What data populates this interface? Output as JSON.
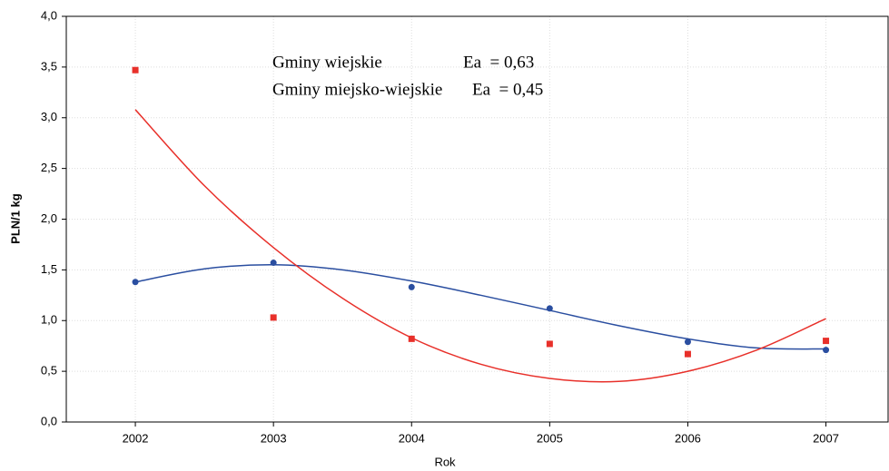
{
  "chart_data": {
    "type": "scatter",
    "xlabel": "Rok",
    "ylabel": "PLN/1 kg",
    "xlim": [
      2001.5,
      2007.45
    ],
    "xticks": [
      2002,
      2003,
      2004,
      2005,
      2006,
      2007
    ],
    "ylim": [
      0,
      4
    ],
    "yticks": [
      {
        "value": 0,
        "label": "0,0"
      },
      {
        "value": 0.5,
        "label": "0,5"
      },
      {
        "value": 1,
        "label": "1,0"
      },
      {
        "value": 1.5,
        "label": "1,5"
      },
      {
        "value": 2,
        "label": "2,0"
      },
      {
        "value": 2.5,
        "label": "2,5"
      },
      {
        "value": 3,
        "label": "3,0"
      },
      {
        "value": 3.5,
        "label": "3,5"
      },
      {
        "value": 4,
        "label": "4,0"
      }
    ],
    "grid": true,
    "series": [
      {
        "name": "Gminy wiejskie",
        "annotation": "Ea  = 0,63",
        "color": "#2a4ea0",
        "marker": "circle",
        "x": [
          2002,
          2003,
          2004,
          2005,
          2006,
          2007
        ],
        "values": [
          1.38,
          1.57,
          1.33,
          1.12,
          0.79,
          0.71
        ],
        "fit_x": [
          2002,
          2002.5,
          2003,
          2003.5,
          2004,
          2004.5,
          2005,
          2005.5,
          2006,
          2006.5,
          2007
        ],
        "fit_values": [
          1.38,
          1.51,
          1.55,
          1.5,
          1.39,
          1.25,
          1.1,
          0.95,
          0.82,
          0.73,
          0.72
        ]
      },
      {
        "name": "Gminy miejsko-wiejskie",
        "annotation": "Ea  = 0,45",
        "color": "#e8302a",
        "marker": "square",
        "x": [
          2002,
          2003,
          2004,
          2005,
          2006,
          2007
        ],
        "values": [
          3.47,
          1.03,
          0.82,
          0.77,
          0.67,
          0.8
        ],
        "fit_x": [
          2002,
          2002.5,
          2003,
          2003.5,
          2004,
          2004.5,
          2005,
          2005.5,
          2006,
          2006.5,
          2007
        ],
        "fit_values": [
          3.08,
          2.33,
          1.72,
          1.22,
          0.83,
          0.57,
          0.43,
          0.4,
          0.5,
          0.71,
          1.02
        ]
      }
    ]
  }
}
